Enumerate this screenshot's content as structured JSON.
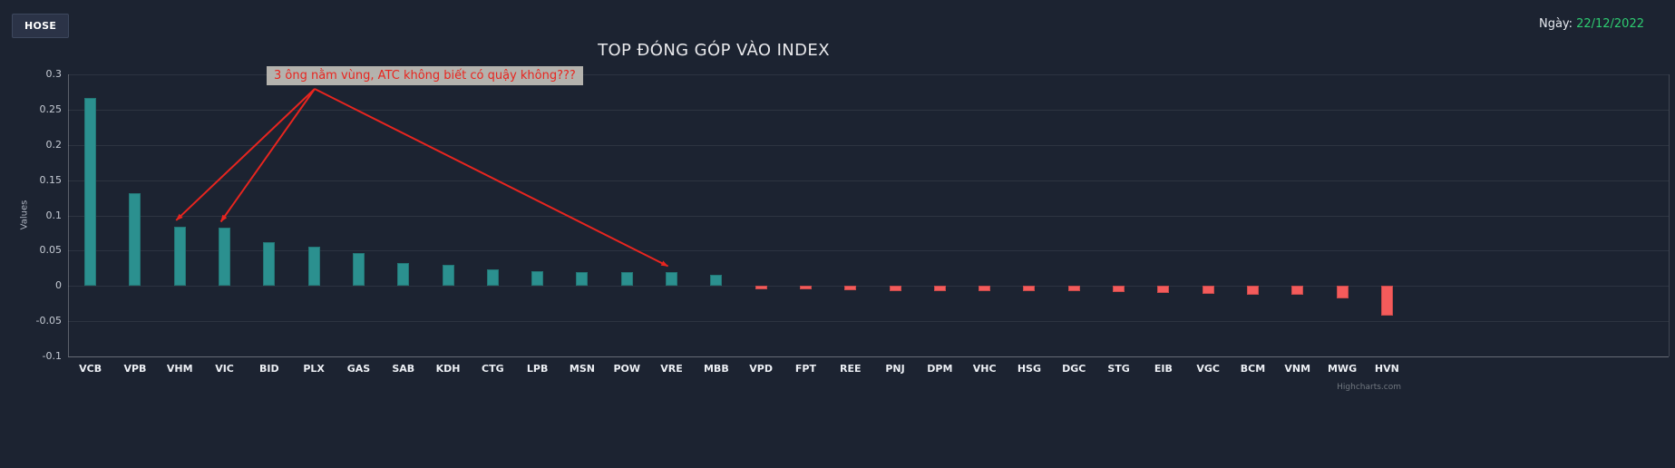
{
  "header": {
    "exchange_button": "HOSE",
    "date_label": "Ngày:",
    "date_value": "22/12/2022"
  },
  "chart_data": {
    "type": "bar",
    "title": "TOP ĐÓNG GÓP VÀO INDEX",
    "ylabel": "Values",
    "ylim": [
      -0.1,
      0.3
    ],
    "ytick_step": 0.05,
    "grid": true,
    "legend": "none",
    "categories": [
      "VCB",
      "VPB",
      "VHM",
      "VIC",
      "BID",
      "PLX",
      "GAS",
      "SAB",
      "KDH",
      "CTG",
      "LPB",
      "MSN",
      "POW",
      "VRE",
      "MBB",
      "VPD",
      "FPT",
      "REE",
      "PNJ",
      "DPM",
      "VHC",
      "HSG",
      "DGC",
      "STG",
      "EIB",
      "VGC",
      "BCM",
      "VNM",
      "MWG",
      "HVN"
    ],
    "values": [
      0.266,
      0.131,
      0.084,
      0.082,
      0.062,
      0.055,
      0.047,
      0.032,
      0.03,
      0.024,
      0.021,
      0.02,
      0.019,
      0.019,
      0.016,
      -0.005,
      -0.005,
      -0.006,
      -0.007,
      -0.007,
      -0.008,
      -0.008,
      -0.008,
      -0.009,
      -0.01,
      -0.011,
      -0.013,
      -0.013,
      -0.018,
      -0.042
    ],
    "positive_color": "#2b908f",
    "negative_color": "#f45b5b",
    "annotation": {
      "text": "3 ông nằm vùng, ATC không biết có quậy không???",
      "color": "#e8251f",
      "targets": [
        "VHM",
        "VIC",
        "VRE"
      ]
    },
    "credits": "Highcharts.com"
  }
}
